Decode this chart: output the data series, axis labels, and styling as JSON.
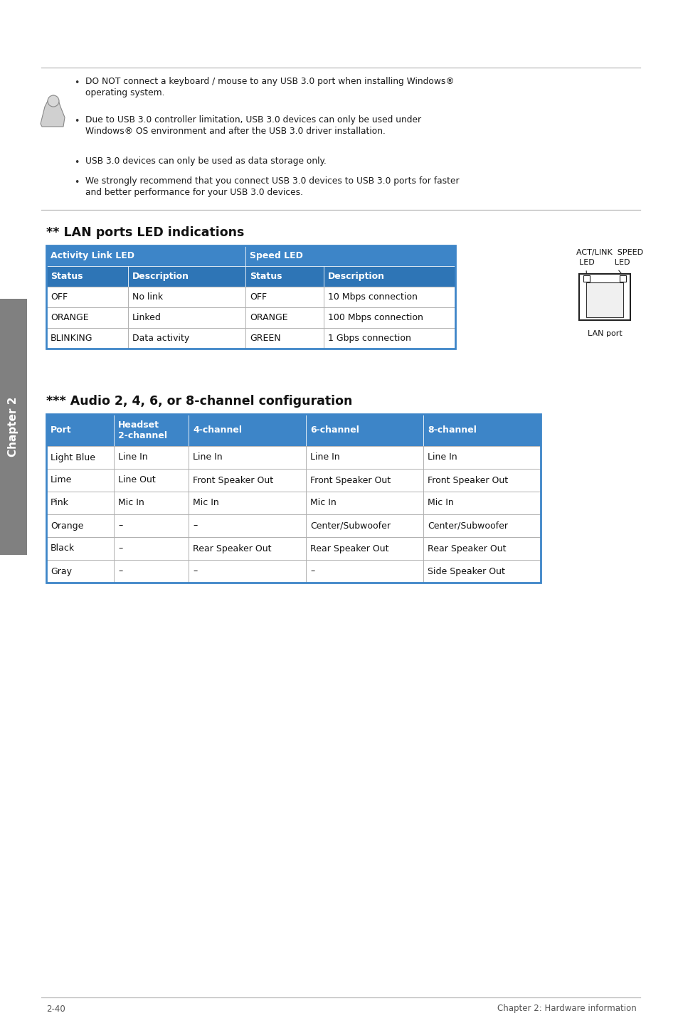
{
  "page_bg": "#ffffff",
  "sidebar_color": "#808080",
  "sidebar_text": "Chapter 2",
  "note_bullets_line1": [
    "DO NOT connect a keyboard / mouse to any USB 3.0 port when installing Windows®",
    "Due to USB 3.0 controller limitation, USB 3.0 devices can only be used under",
    "USB 3.0 devices can only be used as data storage only.",
    "We strongly recommend that you connect USB 3.0 devices to USB 3.0 ports for faster"
  ],
  "note_bullets_line2": [
    "operating system.",
    "Windows® OS environment and after the USB 3.0 driver installation.",
    null,
    "and better performance for your USB 3.0 devices."
  ],
  "lan_title": "** LAN ports LED indications",
  "lan_header1": "Activity Link LED",
  "lan_header2": "Speed LED",
  "lan_subheaders": [
    "Status",
    "Description",
    "Status",
    "Description"
  ],
  "lan_rows": [
    [
      "OFF",
      "No link",
      "OFF",
      "10 Mbps connection"
    ],
    [
      "ORANGE",
      "Linked",
      "ORANGE",
      "100 Mbps connection"
    ],
    [
      "BLINKING",
      "Data activity",
      "GREEN",
      "1 Gbps connection"
    ]
  ],
  "lan_diag_label1": "ACT/LINK  SPEED",
  "lan_diag_label2": "LED        LED",
  "lan_diag_label3": "LAN port",
  "audio_title": "*** Audio 2, 4, 6, or 8-channel configuration",
  "audio_headers": [
    "Port",
    "Headset\n2-channel",
    "4-channel",
    "6-channel",
    "8-channel"
  ],
  "audio_rows": [
    [
      "Light Blue",
      "Line In",
      "Line In",
      "Line In",
      "Line In"
    ],
    [
      "Lime",
      "Line Out",
      "Front Speaker Out",
      "Front Speaker Out",
      "Front Speaker Out"
    ],
    [
      "Pink",
      "Mic In",
      "Mic In",
      "Mic In",
      "Mic In"
    ],
    [
      "Orange",
      "–",
      "–",
      "Center/Subwoofer",
      "Center/Subwoofer"
    ],
    [
      "Black",
      "–",
      "Rear Speaker Out",
      "Rear Speaker Out",
      "Rear Speaker Out"
    ],
    [
      "Gray",
      "–",
      "–",
      "–",
      "Side Speaker Out"
    ]
  ],
  "header_blue": "#3d85c8",
  "header_blue2": "#2e75b6",
  "table_border": "#3d85c8",
  "row_bg": "#ffffff",
  "footer_left": "2-40",
  "footer_right": "Chapter 2: Hardware information"
}
